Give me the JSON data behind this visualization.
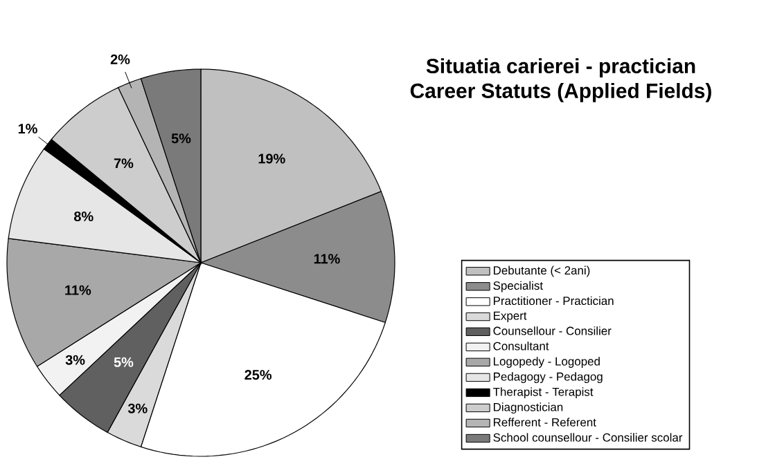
{
  "chart_data": {
    "type": "pie",
    "title": "Situatia carierei - practician",
    "subtitle": "Career Statuts (Applied Fields)",
    "categories": [
      "Debutante (< 2ani)",
      "Specialist",
      "Practitioner - Practician",
      "Expert",
      "Counsellour - Consilier",
      "Consultant",
      "Logopedy - Logoped",
      "Pedagogy - Pedagog",
      "Therapist - Terapist",
      "Diagnostician",
      "Refferent - Referent",
      "School counsellour - Consilier scolar"
    ],
    "values": [
      19,
      11,
      25,
      3,
      5,
      3,
      11,
      8,
      1,
      7,
      2,
      5
    ],
    "colors": [
      "#c0c0c0",
      "#8c8c8c",
      "#ffffff",
      "#dadada",
      "#606060",
      "#f2f2f2",
      "#a8a8a8",
      "#e6e6e6",
      "#000000",
      "#cdcdcd",
      "#b4b4b4",
      "#7a7a7a"
    ],
    "value_labels": [
      "19%",
      "11%",
      "25%",
      "3%",
      "5%",
      "3%",
      "11%",
      "8%",
      "1%",
      "7%",
      "2%",
      "5%"
    ],
    "legend": "right"
  }
}
